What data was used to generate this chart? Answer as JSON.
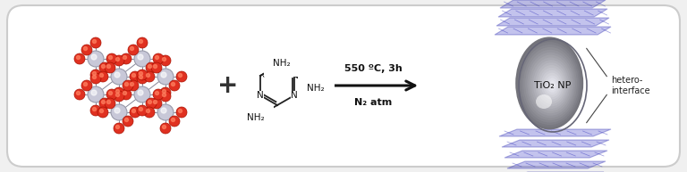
{
  "bg_color": "#f0f0f0",
  "box_color": "#ffffff",
  "box_edge_color": "#cccccc",
  "arrow_color": "#111111",
  "text_arrow_above": "550 ºC, 3h",
  "text_arrow_below": "N₂ atm",
  "plus_text": "+",
  "tio2_label": "TiO₂ NP",
  "hetero_label": "hetero-\ninterface",
  "figsize": [
    7.68,
    1.93
  ],
  "dpi": 100
}
